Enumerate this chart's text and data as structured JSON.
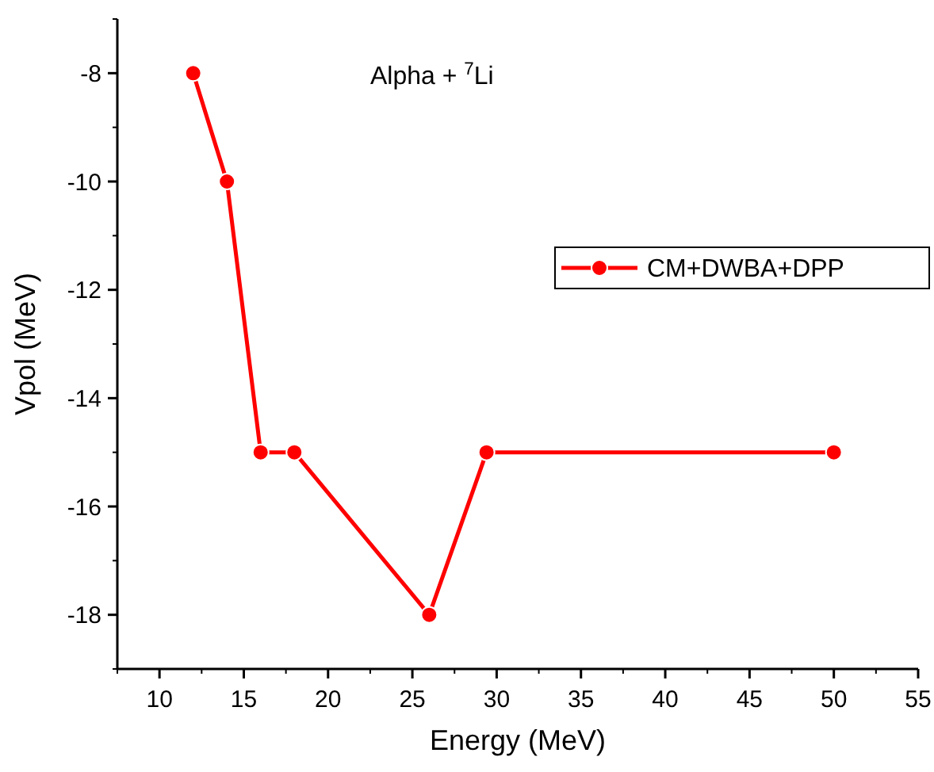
{
  "chart_data": {
    "type": "line",
    "xlabel": "Energy (MeV)",
    "ylabel": "Vpol (MeV)",
    "annotations": [
      "Alpha + $^{7}$Li"
    ],
    "x": [
      12,
      14,
      16,
      18,
      26,
      29.4,
      50
    ],
    "series": [
      {
        "name": "CM+DWBA+DPP",
        "color": "#ff0000",
        "values": [
          -8,
          -10,
          -15,
          -15,
          -18,
          -15,
          -15
        ]
      }
    ],
    "xlim": [
      7.5,
      55
    ],
    "xticks": [
      10,
      15,
      20,
      25,
      30,
      35,
      40,
      45,
      50,
      55
    ],
    "ylim": [
      -19,
      -7
    ],
    "yticks": [
      -8,
      -10,
      -12,
      -14,
      -16,
      -18
    ],
    "marker": "circle",
    "line_style": "solid",
    "legend": "right",
    "grid": false
  }
}
